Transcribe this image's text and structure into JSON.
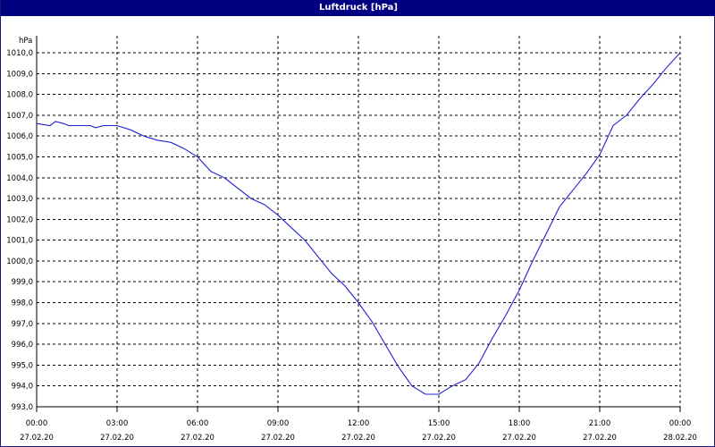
{
  "window": {
    "title": "Luftdruck [hPa]"
  },
  "colors": {
    "titlebar": "#000080",
    "line": "#2020d0",
    "grid": "#000000",
    "background": "#ffffff"
  },
  "chart_data": {
    "type": "line",
    "title": "Luftdruck [hPa]",
    "ylabel": "hPa",
    "xlabel": "",
    "ylim": [
      993.0,
      1010.0
    ],
    "xlim": [
      0,
      24
    ],
    "grid": true,
    "y_ticks": [
      "993,0",
      "994,0",
      "995,0",
      "996,0",
      "997,0",
      "998,0",
      "999,0",
      "1000,0",
      "1001,0",
      "1002,0",
      "1003,0",
      "1004,0",
      "1005,0",
      "1006,0",
      "1007,0",
      "1008,0",
      "1009,0",
      "1010,0"
    ],
    "x_ticks": [
      {
        "time": "00:00",
        "date": "27.02.20"
      },
      {
        "time": "03:00",
        "date": "27.02.20"
      },
      {
        "time": "06:00",
        "date": "27.02.20"
      },
      {
        "time": "09:00",
        "date": "27.02.20"
      },
      {
        "time": "12:00",
        "date": "27.02.20"
      },
      {
        "time": "15:00",
        "date": "27.02.20"
      },
      {
        "time": "18:00",
        "date": "27.02.20"
      },
      {
        "time": "21:00",
        "date": "27.02.20"
      },
      {
        "time": "00:00",
        "date": "28.02.20"
      }
    ],
    "series": [
      {
        "x": [
          0.0,
          0.5,
          0.7,
          1.0,
          1.2,
          1.5,
          2.0,
          2.2,
          2.5,
          3.0,
          3.5,
          4.0,
          4.5,
          5.0,
          5.5,
          6.0,
          6.5,
          7.0,
          7.5,
          8.0,
          8.5,
          9.0,
          9.5,
          10.0,
          10.5,
          11.0,
          11.5,
          12.0,
          12.5,
          13.0,
          13.5,
          14.0,
          14.5,
          15.0,
          15.5,
          16.0,
          16.5,
          17.0,
          17.5,
          18.0,
          18.5,
          19.0,
          19.5,
          20.0,
          20.5,
          21.0,
          21.5,
          22.0,
          22.5,
          23.0,
          23.5,
          24.0
        ],
        "y": [
          1006.6,
          1006.5,
          1006.7,
          1006.6,
          1006.5,
          1006.5,
          1006.5,
          1006.4,
          1006.5,
          1006.5,
          1006.3,
          1006.0,
          1005.8,
          1005.7,
          1005.4,
          1005.0,
          1004.3,
          1004.0,
          1003.5,
          1003.0,
          1002.7,
          1002.2,
          1001.6,
          1001.0,
          1000.2,
          999.4,
          998.8,
          998.0,
          997.1,
          996.0,
          994.9,
          994.0,
          993.6,
          993.6,
          994.0,
          994.3,
          995.1,
          996.3,
          997.4,
          998.6,
          1000.0,
          1001.3,
          1002.6,
          1003.4,
          1004.2,
          1005.1,
          1006.5,
          1007.0,
          1007.8,
          1008.5,
          1009.3,
          1010.0
        ]
      }
    ]
  }
}
